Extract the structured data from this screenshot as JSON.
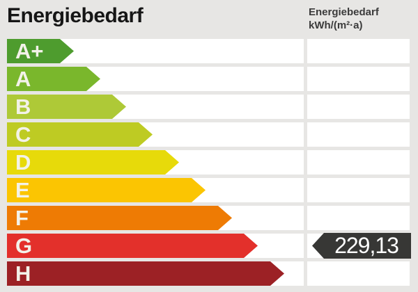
{
  "header": {
    "title": "Energiebedarf",
    "unit_label_line1": "Energiebedarf",
    "unit_label_line2": "kWh/(m²·a)"
  },
  "scale": {
    "rows": [
      {
        "label": "A+",
        "color": "#4e9c2e",
        "arrow_width": 96
      },
      {
        "label": "A",
        "color": "#7ab72c",
        "arrow_width": 134
      },
      {
        "label": "B",
        "color": "#aec937",
        "arrow_width": 171
      },
      {
        "label": "C",
        "color": "#becb23",
        "arrow_width": 209
      },
      {
        "label": "D",
        "color": "#e7da0a",
        "arrow_width": 247
      },
      {
        "label": "E",
        "color": "#fbc502",
        "arrow_width": 285
      },
      {
        "label": "F",
        "color": "#ee7b04",
        "arrow_width": 323
      },
      {
        "label": "G",
        "color": "#e3302b",
        "arrow_width": 360,
        "marker_value": "229,13"
      },
      {
        "label": "H",
        "color": "#9c2125",
        "arrow_width": 398
      }
    ]
  },
  "marker": {
    "value": "229,13",
    "energy_class": "G",
    "color": "#373735"
  },
  "chart_data": {
    "type": "bar",
    "title": "Energiebedarf",
    "ylabel": "kWh/(m²·a)",
    "categories": [
      "A+",
      "A",
      "B",
      "C",
      "D",
      "E",
      "F",
      "G",
      "H"
    ],
    "values": [
      96,
      134,
      171,
      209,
      247,
      285,
      323,
      360,
      398
    ],
    "series_note": "fixed energy-efficiency scale arrows, relative lengths in px",
    "bar_colors": [
      "#4e9c2e",
      "#7ab72c",
      "#aec937",
      "#becb23",
      "#e7da0a",
      "#fbc502",
      "#ee7b04",
      "#e3302b",
      "#9c2125"
    ],
    "marked_value": 229.13,
    "marked_value_text": "229,13",
    "marked_category": "G",
    "legend_position": "none",
    "grid": false
  }
}
